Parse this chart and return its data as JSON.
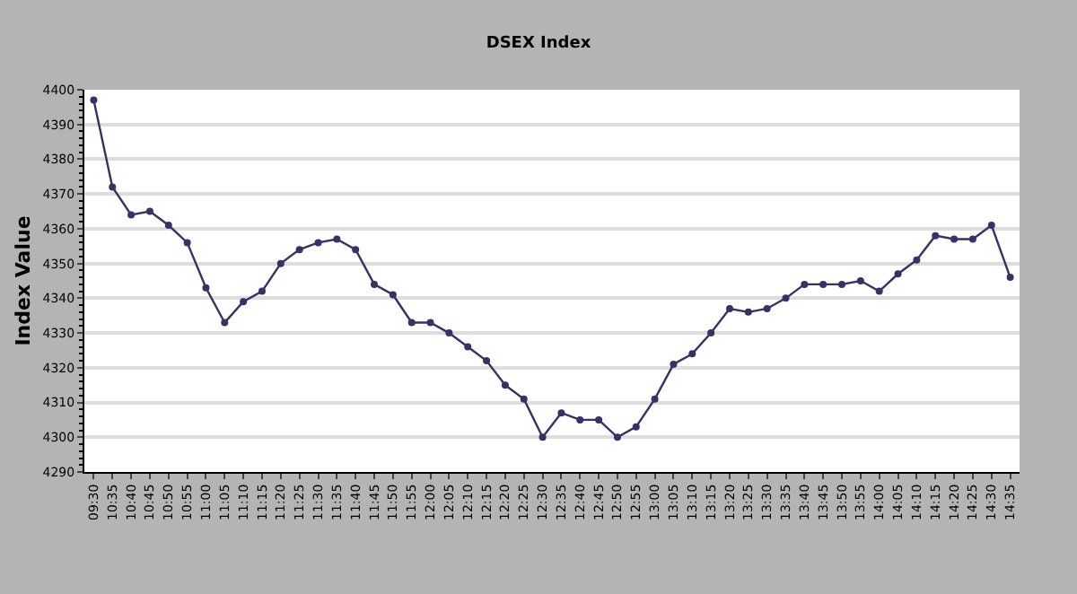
{
  "chart_data": {
    "type": "line",
    "title": "DSEX Index",
    "ylabel": "Index Value",
    "categories": [
      "09:30",
      "10:35",
      "10:40",
      "10:45",
      "10:50",
      "10:55",
      "11:00",
      "11:05",
      "11:10",
      "11:15",
      "11:20",
      "11:25",
      "11:30",
      "11:35",
      "11:40",
      "11:45",
      "11:50",
      "11:55",
      "12:00",
      "12:05",
      "12:10",
      "12:15",
      "12:20",
      "12:25",
      "12:30",
      "12:35",
      "12:40",
      "12:45",
      "12:50",
      "12:55",
      "13:00",
      "13:05",
      "13:10",
      "13:15",
      "13:20",
      "13:25",
      "13:30",
      "13:35",
      "13:40",
      "13:45",
      "13:50",
      "13:55",
      "14:00",
      "14:05",
      "14:10",
      "14:15",
      "14:20",
      "14:25",
      "14:30",
      "14:35"
    ],
    "series": [
      {
        "color": "#333366",
        "values": [
          4397,
          4372,
          4364,
          4365,
          4361,
          4356,
          4343,
          4333,
          4339,
          4342,
          4350,
          4354,
          4356,
          4357,
          4354,
          4344,
          4341,
          4333,
          4333,
          4330,
          4326,
          4322,
          4315,
          4311,
          4300,
          4307,
          4305,
          4305,
          4300,
          4303,
          4311,
          4321,
          4324,
          4330,
          4337,
          4336,
          4337,
          4340,
          4344,
          4344,
          4344,
          4345,
          4342,
          4347,
          4351,
          4358,
          4357,
          4357,
          4361,
          4346
        ]
      }
    ],
    "ylim": [
      4290,
      4400
    ],
    "yticks": [
      4290,
      4300,
      4310,
      4320,
      4330,
      4340,
      4350,
      4360,
      4370,
      4380,
      4390,
      4400
    ],
    "grid": "y",
    "marker": "circle",
    "line_style": "solid"
  }
}
